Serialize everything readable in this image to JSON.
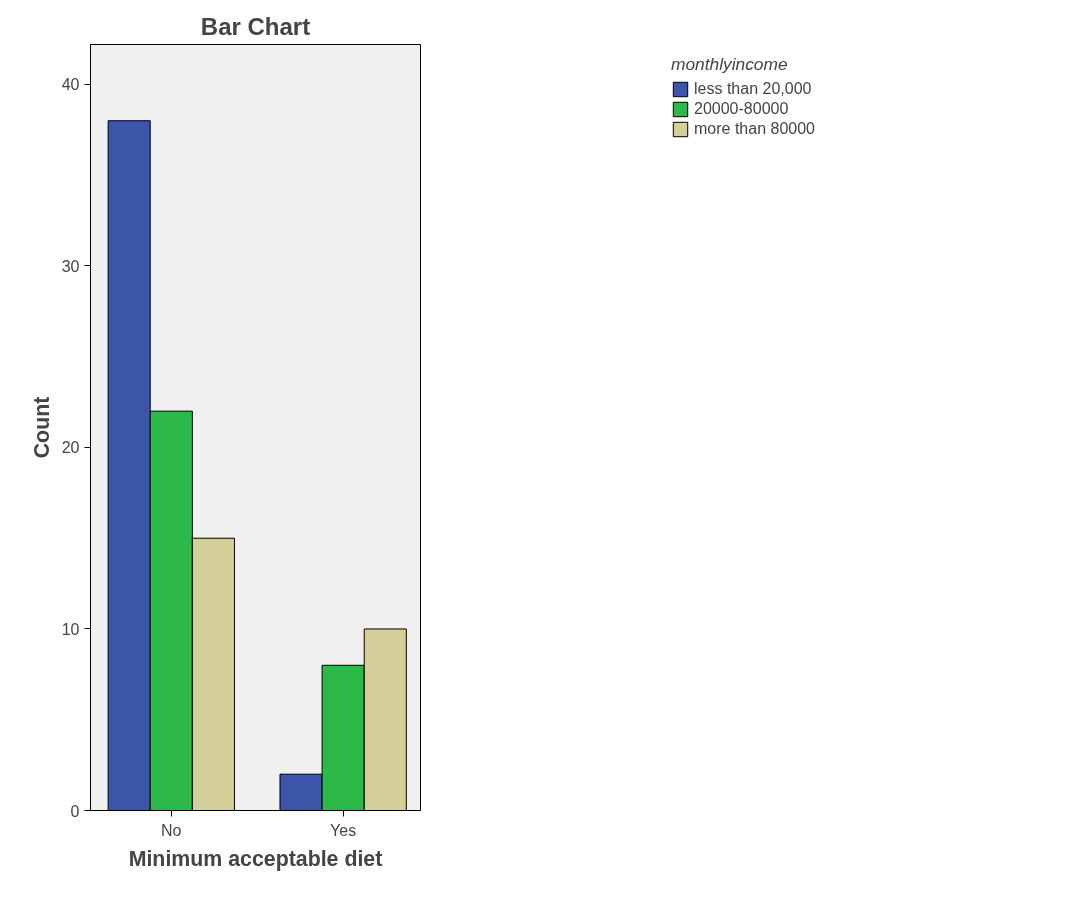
{
  "chart_data": {
    "type": "bar",
    "title": "Bar Chart",
    "xlabel": "Minimum acceptable diet",
    "ylabel": "Count",
    "legend_title": "monthlyincome",
    "categories": [
      "No",
      "Yes"
    ],
    "series": [
      {
        "name": "less than 20,000",
        "color": "#3d55a8",
        "values": [
          38,
          2
        ]
      },
      {
        "name": "20000-80000",
        "color": "#2db84a",
        "values": [
          22,
          8
        ]
      },
      {
        "name": "more than 80000",
        "color": "#d4cf98",
        "values": [
          15,
          10
        ]
      }
    ],
    "ylim": [
      0,
      42.2
    ],
    "yticks": [
      0,
      10,
      20,
      30,
      40
    ],
    "grid": false,
    "legend": "top right"
  }
}
